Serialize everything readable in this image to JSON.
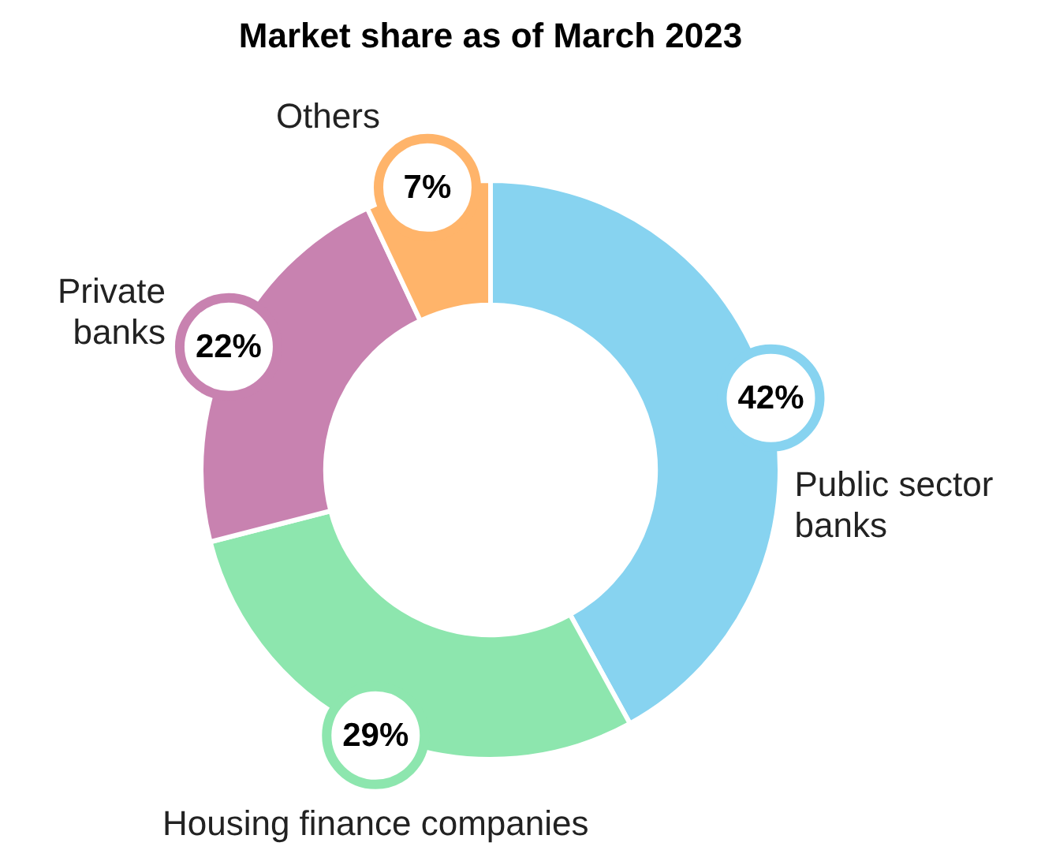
{
  "chart_data": {
    "type": "donut",
    "title": "Market share as of March 2023",
    "categories": [
      "Public sector banks",
      "Housing finance companies",
      "Private banks",
      "Others"
    ],
    "values": [
      42,
      29,
      22,
      7
    ],
    "value_labels": [
      "42%",
      "29%",
      "22%",
      "7%"
    ],
    "colors": [
      "#87d3f0",
      "#8de6ae",
      "#c882b0",
      "#ffb46a"
    ],
    "legend": false
  }
}
